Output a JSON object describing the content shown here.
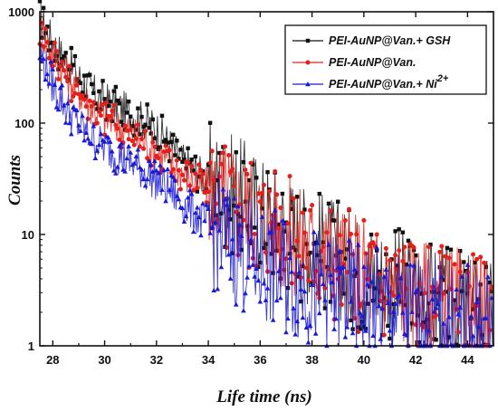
{
  "chart_data": {
    "type": "scatter",
    "xlabel": "Life time (ns)",
    "ylabel": "Counts",
    "xlim": [
      27.5,
      45
    ],
    "ylim": [
      1,
      1000
    ],
    "yscale": "log",
    "x_ticks": [
      "28",
      "30",
      "32",
      "34",
      "36",
      "38",
      "40",
      "42",
      "44"
    ],
    "y_ticks": [
      "1",
      "10",
      "100",
      "1000"
    ],
    "legend_position": "top-right",
    "series": [
      {
        "name": "PEI-AuNP@Van.+ GSH",
        "label_main": "PEI-AuNP@Van.+ GSH",
        "label_sup": "",
        "color": "#111111",
        "marker": "square",
        "x": [
          27.5,
          28.0,
          28.5,
          29.0,
          29.5,
          30.0,
          30.5,
          31.0,
          31.5,
          32.0,
          32.5,
          33.0,
          33.5,
          34.0,
          34.5,
          35.0,
          35.5,
          36.0,
          36.5,
          37.0,
          37.5,
          38.0,
          38.5,
          39.0,
          39.5,
          40.0,
          40.5,
          41.0,
          41.5,
          42.0,
          42.5,
          43.0,
          43.5,
          44.0,
          44.5,
          45.0
        ],
        "values": [
          900,
          530,
          360,
          260,
          190,
          160,
          140,
          120,
          105,
          90,
          65,
          45,
          38,
          30,
          26,
          23,
          20,
          16,
          13,
          11,
          9,
          8,
          7,
          6,
          5,
          4.5,
          4,
          3.6,
          3.2,
          2.9,
          2.6,
          2.4,
          2.2,
          2,
          1.9,
          1.8
        ]
      },
      {
        "name": "PEI-AuNP@Van.",
        "label_main": "PEI-AuNP@Van.",
        "label_sup": "",
        "color": "#e3201b",
        "marker": "circle",
        "x": [
          27.5,
          28.0,
          28.5,
          29.0,
          29.5,
          30.0,
          30.5,
          31.0,
          31.5,
          32.0,
          32.5,
          33.0,
          33.5,
          34.0,
          34.5,
          35.0,
          35.5,
          36.0,
          36.5,
          37.0,
          37.5,
          38.0,
          38.5,
          39.0,
          39.5,
          40.0,
          40.5,
          41.0,
          41.5,
          42.0,
          42.5,
          43.0,
          43.5,
          44.0,
          44.5,
          45.0
        ],
        "values": [
          700,
          420,
          280,
          190,
          140,
          110,
          95,
          80,
          68,
          55,
          45,
          36,
          30,
          26,
          22,
          19,
          16,
          14,
          12,
          10,
          8.5,
          7.5,
          6.5,
          5.8,
          5,
          4.5,
          4,
          3.6,
          3.2,
          2.9,
          2.6,
          2.4,
          2.2,
          2,
          1.9,
          1.8
        ]
      },
      {
        "name": "PEI-AuNP@Van.+ Ni2+",
        "label_main": "PEI-AuNP@Van.+ Ni",
        "label_sup": "2+",
        "color": "#1a1ad6",
        "marker": "triangle",
        "x": [
          27.5,
          28.0,
          28.5,
          29.0,
          29.5,
          30.0,
          30.5,
          31.0,
          31.5,
          32.0,
          32.5,
          33.0,
          33.5,
          34.0,
          34.5,
          35.0,
          35.5,
          36.0,
          36.5,
          37.0,
          37.5,
          38.0,
          38.5,
          39.0,
          39.5,
          40.0,
          40.5,
          41.0,
          41.5,
          42.0,
          42.5,
          43.0,
          43.5,
          44.0,
          44.5,
          45.0
        ],
        "values": [
          430,
          220,
          140,
          95,
          75,
          60,
          52,
          44,
          37,
          30,
          25,
          19,
          15,
          12,
          10,
          8,
          6.5,
          5.5,
          4.8,
          4.2,
          3.8,
          3.4,
          3.1,
          2.8,
          2.6,
          2.4,
          2.2,
          2.1,
          2,
          1.9,
          1.8,
          1.7,
          1.6,
          1.5,
          1.4,
          1.3
        ]
      }
    ]
  }
}
